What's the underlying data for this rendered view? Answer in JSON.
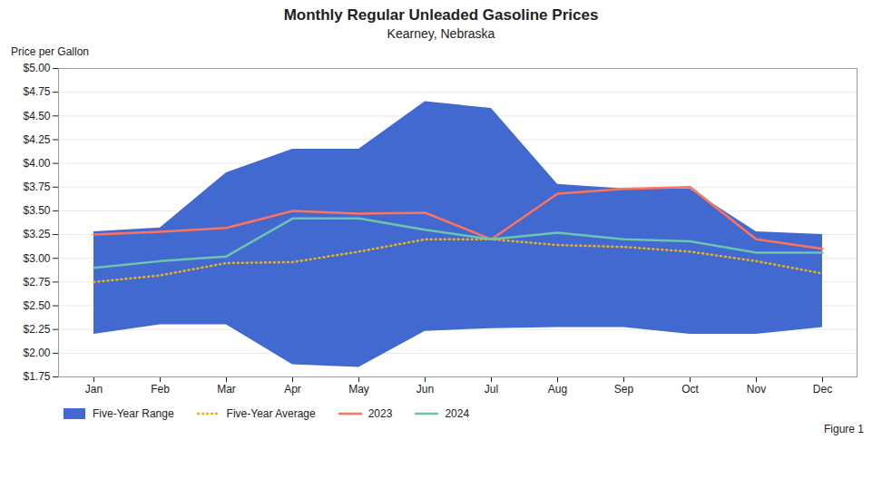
{
  "chart_data": {
    "type": "line",
    "title": "Monthly Regular Unleaded Gasoline Prices",
    "subtitle": "Kearney, Nebraska",
    "ylabel": "Price per Gallon",
    "annotations": [
      "Figure 1"
    ],
    "categories": [
      "Jan",
      "Feb",
      "Mar",
      "Apr",
      "May",
      "Jun",
      "Jul",
      "Aug",
      "Sep",
      "Oct",
      "Nov",
      "Dec"
    ],
    "series": [
      {
        "name": "Five-Year Range",
        "type": "area",
        "low": [
          2.2,
          2.3,
          2.3,
          1.88,
          1.85,
          2.23,
          2.26,
          2.27,
          2.27,
          2.2,
          2.2,
          2.27
        ],
        "high": [
          3.28,
          3.32,
          3.9,
          4.15,
          4.15,
          4.65,
          4.58,
          3.78,
          3.73,
          3.73,
          3.28,
          3.25
        ]
      },
      {
        "name": "Five-Year Average",
        "type": "line",
        "line_style": "dotted",
        "values": [
          2.75,
          2.82,
          2.95,
          2.96,
          3.07,
          3.2,
          3.2,
          3.14,
          3.12,
          3.07,
          2.97,
          2.84
        ]
      },
      {
        "name": "2023",
        "type": "line",
        "line_style": "solid",
        "values": [
          3.25,
          3.28,
          3.32,
          3.5,
          3.47,
          3.48,
          3.2,
          3.68,
          3.73,
          3.75,
          3.2,
          3.1
        ]
      },
      {
        "name": "2024",
        "type": "line",
        "line_style": "solid",
        "values": [
          2.9,
          2.97,
          3.02,
          3.42,
          3.42,
          3.3,
          3.2,
          3.27,
          3.2,
          3.18,
          3.06,
          3.06
        ]
      }
    ],
    "ylim": [
      1.75,
      5.0
    ],
    "yticks": [
      {
        "value": 1.75,
        "label": "$1.75"
      },
      {
        "value": 2.0,
        "label": "$2.00"
      },
      {
        "value": 2.25,
        "label": "$2.25"
      },
      {
        "value": 2.5,
        "label": "$2.50"
      },
      {
        "value": 2.75,
        "label": "$2.75"
      },
      {
        "value": 3.0,
        "label": "$3.00"
      },
      {
        "value": 3.25,
        "label": "$3.25"
      },
      {
        "value": 3.5,
        "label": "$3.50"
      },
      {
        "value": 3.75,
        "label": "$3.75"
      },
      {
        "value": 4.0,
        "label": "$4.00"
      },
      {
        "value": 4.25,
        "label": "$4.25"
      },
      {
        "value": 4.5,
        "label": "$4.50"
      },
      {
        "value": 4.75,
        "label": "$4.75"
      },
      {
        "value": 5.0,
        "label": "$5.00"
      }
    ],
    "grid": true,
    "legend": "bottom"
  }
}
